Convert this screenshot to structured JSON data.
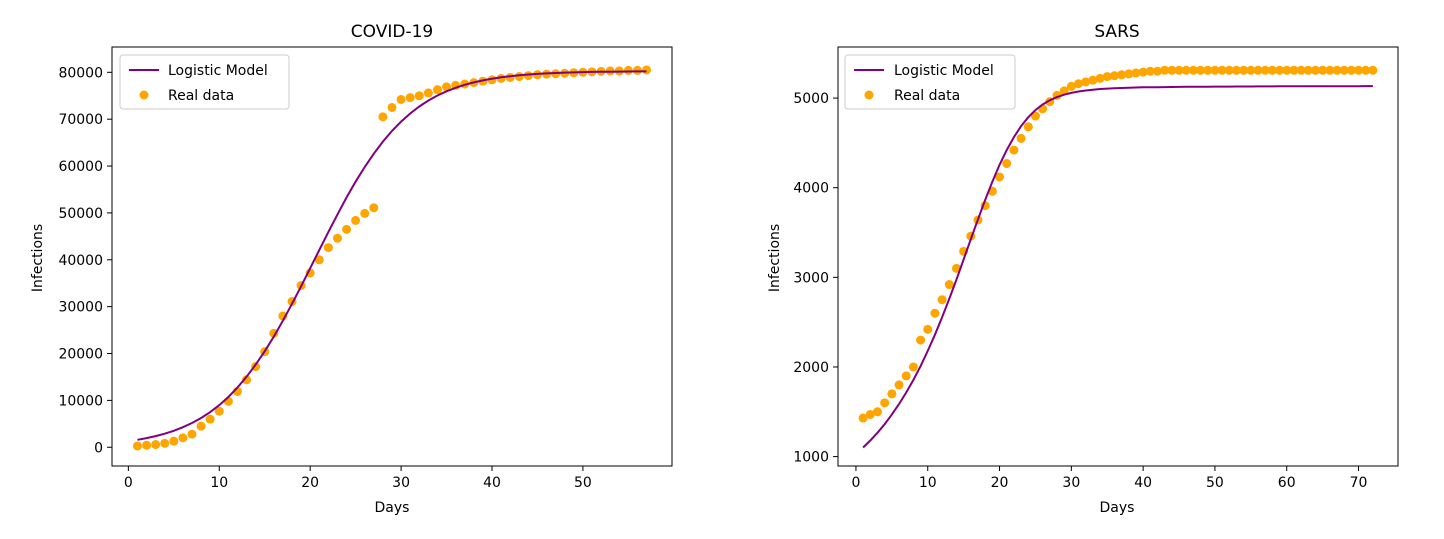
{
  "chart_data": [
    {
      "id": "covid",
      "type": "scatter",
      "title": "COVID-19",
      "xlabel": "Days",
      "ylabel": "Infections",
      "xlim": [
        -1.8,
        59.8
      ],
      "ylim": [
        -4000,
        85400
      ],
      "xticks": [
        0,
        10,
        20,
        30,
        40,
        50
      ],
      "yticks": [
        0,
        10000,
        20000,
        30000,
        40000,
        50000,
        60000,
        70000,
        80000
      ],
      "legend": "top-left",
      "grid": false,
      "series": [
        {
          "name": "Logistic Model",
          "kind": "line",
          "color": "#800080",
          "x": [
            1,
            2,
            3,
            4,
            5,
            6,
            7,
            8,
            9,
            10,
            11,
            12,
            13,
            14,
            15,
            16,
            17,
            18,
            19,
            20,
            21,
            22,
            23,
            24,
            25,
            26,
            27,
            28,
            29,
            30,
            31,
            32,
            33,
            34,
            35,
            36,
            37,
            38,
            39,
            40,
            41,
            42,
            43,
            44,
            45,
            46,
            47,
            48,
            49,
            50,
            51,
            52,
            53,
            54,
            55,
            56,
            57
          ],
          "y": [
            1600,
            1950,
            2380,
            2900,
            3520,
            4270,
            5170,
            6240,
            7500,
            8990,
            10730,
            12740,
            15030,
            17610,
            20470,
            23610,
            27000,
            30600,
            34350,
            38200,
            42090,
            45940,
            49690,
            53280,
            56660,
            59790,
            62640,
            65210,
            67490,
            69490,
            71220,
            72710,
            73980,
            75050,
            75950,
            76700,
            77330,
            77850,
            78280,
            78640,
            78930,
            79170,
            79370,
            79530,
            79660,
            79770,
            79860,
            79930,
            79990,
            80040,
            80080,
            80110,
            80140,
            80160,
            80180,
            80190,
            80200
          ]
        },
        {
          "name": "Real data",
          "kind": "scatter",
          "color": "#FFA500",
          "x": [
            1,
            2,
            3,
            4,
            5,
            6,
            7,
            8,
            9,
            10,
            11,
            12,
            13,
            14,
            15,
            16,
            17,
            18,
            19,
            20,
            21,
            22,
            23,
            24,
            25,
            26,
            27,
            28,
            29,
            30,
            31,
            32,
            33,
            34,
            35,
            36,
            37,
            38,
            39,
            40,
            41,
            42,
            43,
            44,
            45,
            46,
            47,
            48,
            49,
            50,
            51,
            52,
            53,
            54,
            55,
            56,
            57
          ],
          "y": [
            280,
            440,
            580,
            830,
            1300,
            2000,
            2800,
            4500,
            6000,
            7700,
            9800,
            11900,
            14400,
            17200,
            20400,
            24300,
            28000,
            31100,
            34500,
            37200,
            40000,
            42600,
            44600,
            46500,
            48400,
            49900,
            51100,
            70500,
            72500,
            74200,
            74600,
            75000,
            75600,
            76300,
            76900,
            77200,
            77500,
            77800,
            78100,
            78400,
            78700,
            78900,
            79100,
            79300,
            79500,
            79600,
            79700,
            79800,
            79900,
            80000,
            80100,
            80200,
            80300,
            80300,
            80400,
            80400,
            80500
          ]
        }
      ]
    },
    {
      "id": "sars",
      "type": "scatter",
      "title": "SARS",
      "xlabel": "Days",
      "ylabel": "Infections",
      "xlim": [
        -2.5,
        75.5
      ],
      "ylim": [
        895,
        5570
      ],
      "xticks": [
        0,
        10,
        20,
        30,
        40,
        50,
        60,
        70
      ],
      "yticks": [
        1000,
        2000,
        3000,
        4000,
        5000
      ],
      "legend": "top-left",
      "grid": false,
      "series": [
        {
          "name": "Logistic Model",
          "kind": "line",
          "color": "#800080",
          "x": [
            1,
            2,
            3,
            4,
            5,
            6,
            7,
            8,
            9,
            10,
            11,
            12,
            13,
            14,
            15,
            16,
            17,
            18,
            19,
            20,
            21,
            22,
            23,
            24,
            25,
            26,
            27,
            28,
            29,
            30,
            31,
            32,
            33,
            34,
            35,
            36,
            37,
            38,
            39,
            40,
            41,
            42,
            43,
            44,
            45,
            46,
            47,
            48,
            49,
            50,
            51,
            52,
            53,
            54,
            55,
            56,
            57,
            58,
            59,
            60,
            61,
            62,
            63,
            64,
            65,
            66,
            67,
            68,
            69,
            70,
            71,
            72
          ],
          "y": [
            1101,
            1180,
            1267,
            1363,
            1469,
            1586,
            1715,
            1856,
            2010,
            2178,
            2359,
            2554,
            2760,
            2976,
            3199,
            3425,
            3648,
            3864,
            4068,
            4254,
            4420,
            4565,
            4687,
            4787,
            4866,
            4928,
            4975,
            5011,
            5038,
            5058,
            5073,
            5085,
            5094,
            5101,
            5106,
            5110,
            5113,
            5116,
            5118,
            5120,
            5121,
            5122,
            5123,
            5124,
            5125,
            5126,
            5126,
            5127,
            5127,
            5128,
            5128,
            5128,
            5129,
            5129,
            5129,
            5130,
            5130,
            5130,
            5131,
            5131,
            5131,
            5131,
            5132,
            5132,
            5132,
            5132,
            5133,
            5133,
            5133,
            5133,
            5134,
            5134
          ]
        },
        {
          "name": "Real data",
          "kind": "scatter",
          "color": "#FFA500",
          "x": [
            1,
            2,
            3,
            4,
            5,
            6,
            7,
            8,
            9,
            10,
            11,
            12,
            13,
            14,
            15,
            16,
            17,
            18,
            19,
            20,
            21,
            22,
            23,
            24,
            25,
            26,
            27,
            28,
            29,
            30,
            31,
            32,
            33,
            34,
            35,
            36,
            37,
            38,
            39,
            40,
            41,
            42,
            43,
            44,
            45,
            46,
            47,
            48,
            49,
            50,
            51,
            52,
            53,
            54,
            55,
            56,
            57,
            58,
            59,
            60,
            61,
            62,
            63,
            64,
            65,
            66,
            67,
            68,
            69,
            70,
            71,
            72
          ],
          "y": [
            1430,
            1470,
            1500,
            1600,
            1700,
            1800,
            1900,
            2000,
            2300,
            2420,
            2600,
            2750,
            2920,
            3100,
            3290,
            3460,
            3640,
            3800,
            3960,
            4120,
            4270,
            4420,
            4550,
            4680,
            4800,
            4880,
            4960,
            5030,
            5080,
            5130,
            5160,
            5180,
            5200,
            5220,
            5240,
            5250,
            5260,
            5270,
            5280,
            5290,
            5300,
            5300,
            5310,
            5310,
            5310,
            5310,
            5310,
            5310,
            5310,
            5310,
            5310,
            5310,
            5310,
            5310,
            5310,
            5310,
            5310,
            5310,
            5310,
            5310,
            5310,
            5310,
            5310,
            5310,
            5310,
            5310,
            5310,
            5310,
            5310,
            5310,
            5310,
            5310
          ]
        }
      ]
    }
  ]
}
